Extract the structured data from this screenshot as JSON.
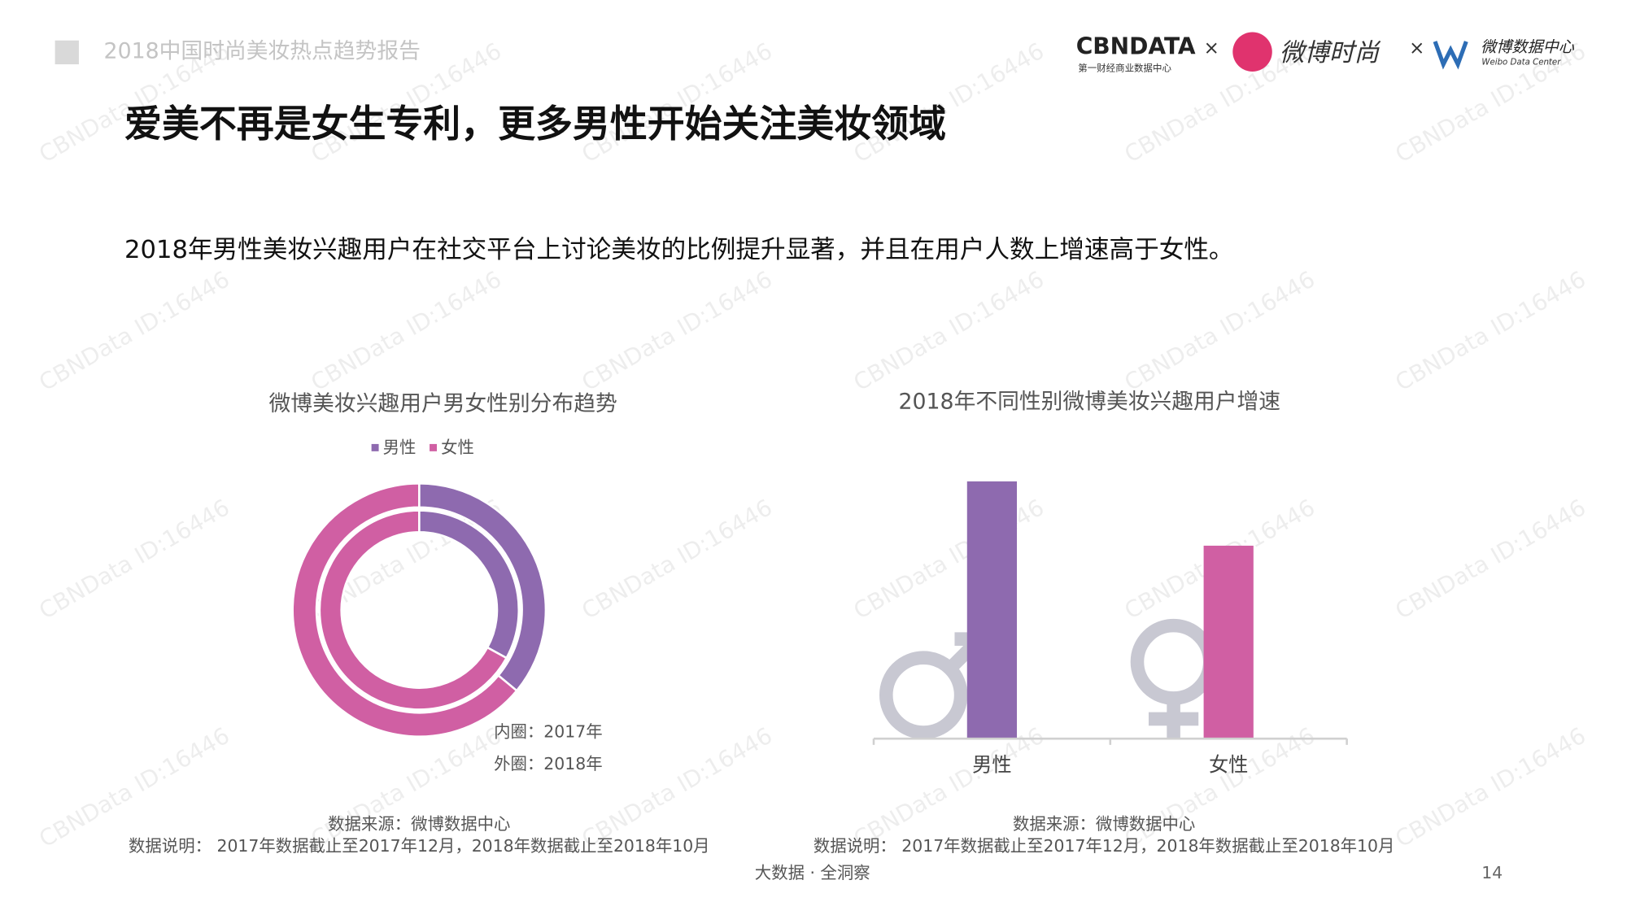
{
  "header": {
    "report": "2018中国时尚美妆热点趋势报告",
    "logo_cbn": "CBNDATA",
    "logo_cbn_sub": "第一财经商业数据中心",
    "times_1": "×",
    "logo_weibo_fashion": "微博时尚",
    "times_2": "×",
    "logo_weibo_data": "微博数据中心",
    "logo_weibo_data_sub": "Weibo Data Center"
  },
  "title": "爱美不再是女生专利，更多男性开始关注美妆领域",
  "subtitle": "2018年男性美妆兴趣用户在社交平台上讨论美妆的比例提升显著，并且在用户人数上增速高于女性。",
  "watermark": "CBNData ID:16446",
  "chart_data": [
    {
      "type": "donut",
      "title": "微博美妆兴趣用户男女性别分布趋势",
      "categories": [
        "男性",
        "女性"
      ],
      "colors": [
        "#8e6aaf",
        "#d05fa3"
      ],
      "series": [
        {
          "name": "内圈：2017年",
          "values": [
            33,
            67
          ]
        },
        {
          "name": "外圈：2018年",
          "values": [
            36,
            64
          ]
        }
      ],
      "source": "数据来源：微博数据中心",
      "note": "数据说明： 2017年数据截止至2017年12月，2018年数据截止至2018年10月"
    },
    {
      "type": "bar",
      "title": "2018年不同性别微博美妆兴趣用户增速",
      "categories": [
        "男性",
        "女性"
      ],
      "values": [
        100,
        75
      ],
      "colors": [
        "#8e6aaf",
        "#d05fa3"
      ],
      "source": "数据来源：微博数据中心",
      "note": "数据说明： 2017年数据截止至2017年12月，2018年数据截止至2018年10月"
    }
  ],
  "footer": {
    "slogan": "大数据 · 全洞察",
    "page": "14"
  }
}
